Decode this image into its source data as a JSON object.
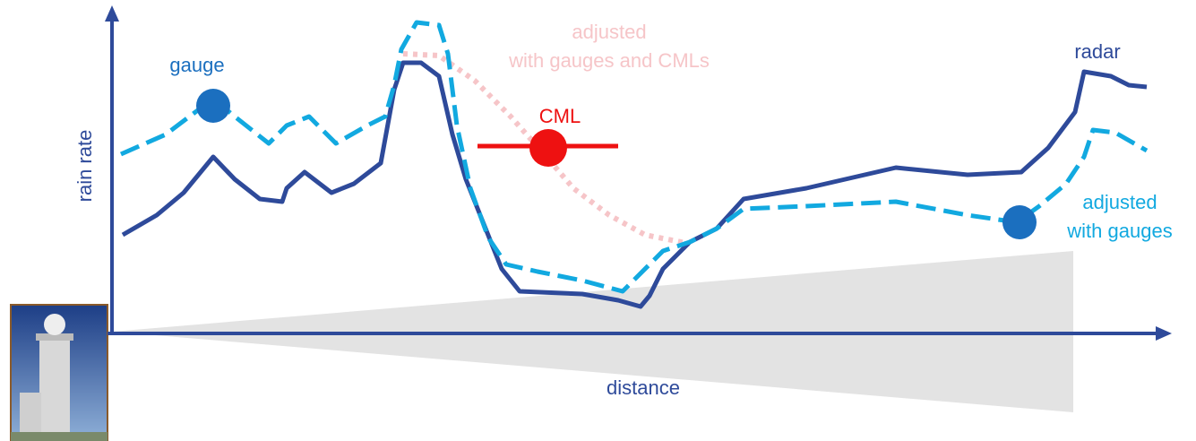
{
  "labels": {
    "cml_adjusted_line1": "adjusted",
    "cml_adjusted_line2": "with gauges and CMLs",
    "gauge": "gauge",
    "radar": "radar",
    "cml": "CML",
    "y_axis": "rain rate",
    "gauge_adjusted_line1": "adjusted",
    "gauge_adjusted_line2": "with gauges",
    "x_axis": "distance"
  }
}
